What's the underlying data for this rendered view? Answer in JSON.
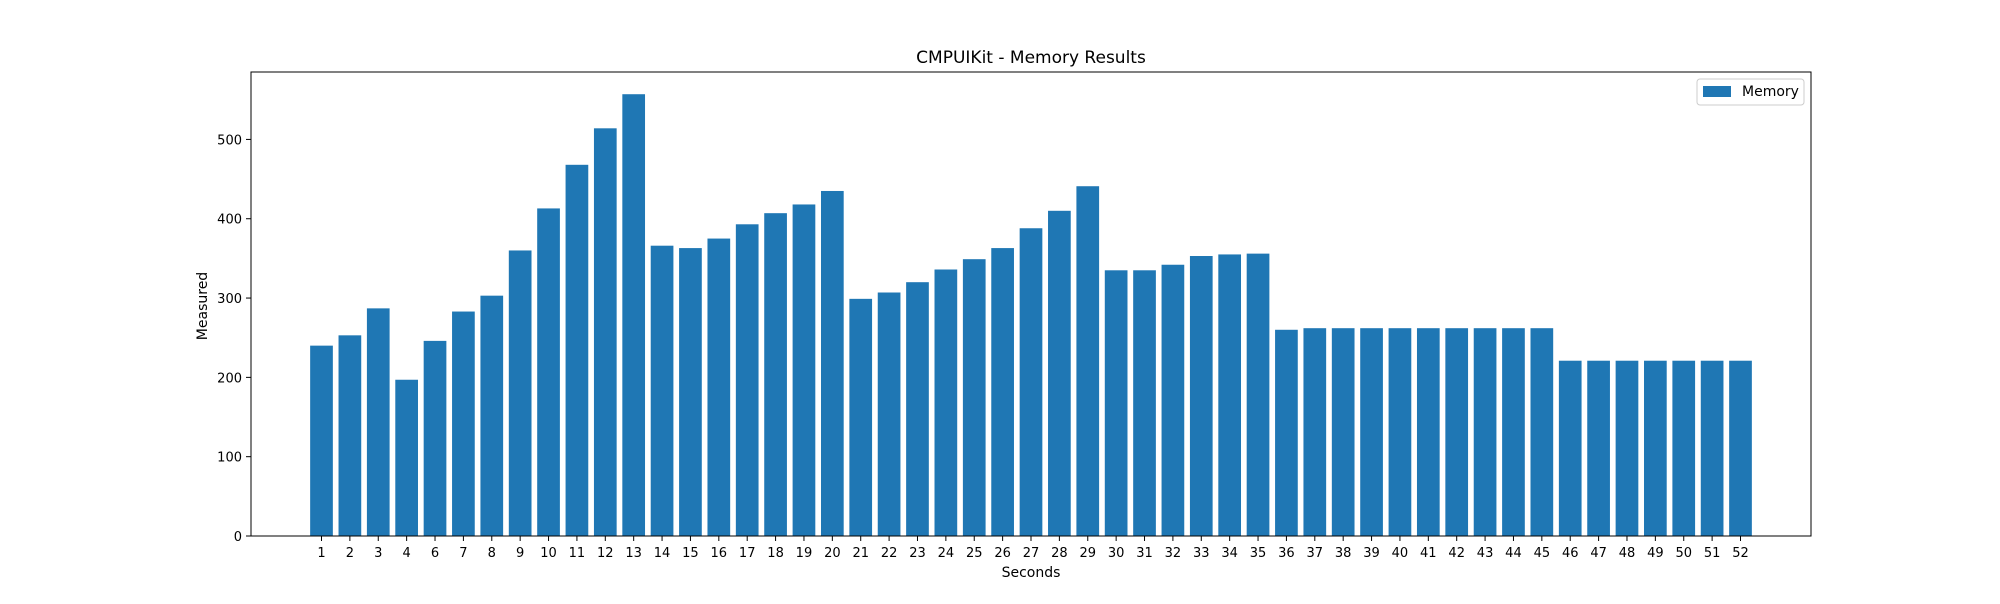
{
  "chart_data": {
    "type": "bar",
    "title": "CMPUIKit - Memory Results",
    "xlabel": "Seconds",
    "ylabel": "Measured",
    "ylim": [
      0,
      585
    ],
    "yticks": [
      0,
      100,
      200,
      300,
      400,
      500
    ],
    "categories": [
      "1",
      "2",
      "3",
      "4",
      "6",
      "7",
      "8",
      "9",
      "10",
      "11",
      "12",
      "13",
      "14",
      "15",
      "16",
      "17",
      "18",
      "19",
      "20",
      "21",
      "22",
      "23",
      "24",
      "25",
      "26",
      "27",
      "28",
      "29",
      "30",
      "31",
      "32",
      "33",
      "34",
      "35",
      "36",
      "37",
      "38",
      "39",
      "40",
      "41",
      "42",
      "43",
      "44",
      "45",
      "46",
      "47",
      "48",
      "49",
      "50",
      "51",
      "52"
    ],
    "series": [
      {
        "name": "Memory",
        "color": "#1f77b4",
        "values": [
          240,
          253,
          287,
          197,
          246,
          283,
          303,
          360,
          413,
          468,
          514,
          557,
          366,
          363,
          375,
          393,
          407,
          418,
          435,
          299,
          307,
          320,
          336,
          349,
          363,
          388,
          410,
          441,
          335,
          335,
          342,
          353,
          355,
          356,
          260,
          262,
          262,
          262,
          262,
          262,
          262,
          262,
          262,
          262,
          221,
          221,
          221,
          221,
          221,
          221,
          221
        ]
      }
    ],
    "grid": false,
    "legend_position": "top-right"
  }
}
